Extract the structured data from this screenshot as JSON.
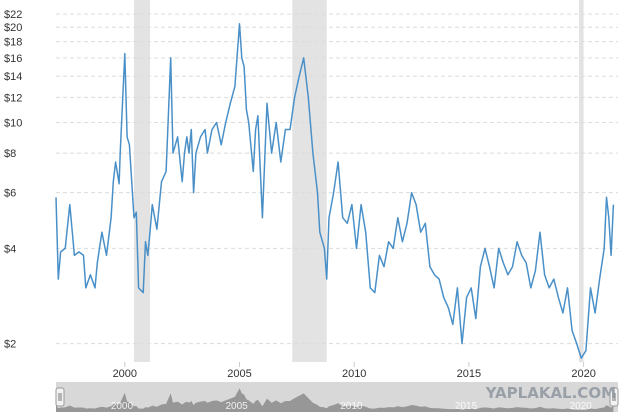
{
  "chart_data": {
    "type": "line",
    "title": "",
    "xlabel": "",
    "ylabel": "",
    "y_scale": "log",
    "ylim": [
      1.75,
      23
    ],
    "xlim": [
      1997.0,
      2021.5
    ],
    "grid": true,
    "y_ticks": [
      2,
      4,
      6,
      8,
      10,
      12,
      14,
      16,
      18,
      20,
      22
    ],
    "y_tick_labels": [
      "$2",
      "$4",
      "$6",
      "$8",
      "$10",
      "$12",
      "$14",
      "$16",
      "$18",
      "$20",
      "$22"
    ],
    "x_ticks": [
      2000,
      2005,
      2010,
      2015,
      2020
    ],
    "x_tick_labels": [
      "2000",
      "2005",
      "2010",
      "2015",
      "2020"
    ],
    "recession_bands": [
      [
        2000.4,
        2001.1
      ],
      [
        2007.3,
        2008.8
      ],
      [
        2019.8,
        2020.0
      ]
    ],
    "series": [
      {
        "color": "#4a90c8",
        "x": [
          1997.0,
          1997.1,
          1997.2,
          1997.4,
          1997.6,
          1997.8,
          1998.0,
          1998.2,
          1998.3,
          1998.5,
          1998.7,
          1998.8,
          1999.0,
          1999.2,
          1999.4,
          1999.5,
          1999.6,
          1999.75,
          1999.8,
          2000.0,
          2000.1,
          2000.2,
          2000.4,
          2000.5,
          2000.6,
          2000.8,
          2000.9,
          2001.0,
          2001.1,
          2001.2,
          2001.4,
          2001.6,
          2001.8,
          2002.0,
          2002.1,
          2002.3,
          2002.5,
          2002.6,
          2002.7,
          2002.8,
          2002.9,
          2003.0,
          2003.1,
          2003.3,
          2003.5,
          2003.6,
          2003.8,
          2004.0,
          2004.2,
          2004.4,
          2004.6,
          2004.8,
          2005.0,
          2005.1,
          2005.2,
          2005.3,
          2005.4,
          2005.6,
          2005.7,
          2005.8,
          2006.0,
          2006.2,
          2006.4,
          2006.6,
          2006.8,
          2007.0,
          2007.2,
          2007.4,
          2007.6,
          2007.8,
          2008.0,
          2008.2,
          2008.4,
          2008.5,
          2008.7,
          2008.8,
          2008.9,
          2009.1,
          2009.3,
          2009.5,
          2009.7,
          2009.9,
          2010.1,
          2010.3,
          2010.5,
          2010.7,
          2010.9,
          2011.1,
          2011.3,
          2011.5,
          2011.7,
          2011.9,
          2012.1,
          2012.3,
          2012.5,
          2012.7,
          2012.9,
          2013.1,
          2013.3,
          2013.5,
          2013.7,
          2013.9,
          2014.1,
          2014.3,
          2014.5,
          2014.7,
          2014.9,
          2015.1,
          2015.3,
          2015.5,
          2015.7,
          2015.9,
          2016.1,
          2016.3,
          2016.5,
          2016.7,
          2016.9,
          2017.1,
          2017.3,
          2017.5,
          2017.7,
          2017.9,
          2018.1,
          2018.3,
          2018.5,
          2018.7,
          2018.9,
          2019.1,
          2019.3,
          2019.5,
          2019.7,
          2019.9,
          2020.1,
          2020.3,
          2020.5,
          2020.7,
          2020.9,
          2021.0,
          2021.1,
          2021.2,
          2021.3
        ],
        "values": [
          5.8,
          3.2,
          3.9,
          4.0,
          5.5,
          3.8,
          3.9,
          3.8,
          3.0,
          3.3,
          3.0,
          3.6,
          4.5,
          3.8,
          5.0,
          6.5,
          7.5,
          6.4,
          8.0,
          16.5,
          9.0,
          8.5,
          5.0,
          5.2,
          3.0,
          2.9,
          4.2,
          3.8,
          4.5,
          5.5,
          4.6,
          6.5,
          7.0,
          16.0,
          8.0,
          9.0,
          6.5,
          8.0,
          9.0,
          8.0,
          9.5,
          6.0,
          8.0,
          9.0,
          9.5,
          8.0,
          9.5,
          10.0,
          8.5,
          10.0,
          11.5,
          13.0,
          20.5,
          16.0,
          15.0,
          11.0,
          10.0,
          7.0,
          9.5,
          10.5,
          5.0,
          11.5,
          8.0,
          10.0,
          7.5,
          9.5,
          9.5,
          12.0,
          14.0,
          16.0,
          12.0,
          8.0,
          6.0,
          4.5,
          4.0,
          3.2,
          5.0,
          6.0,
          7.5,
          5.0,
          4.8,
          5.5,
          4.0,
          5.5,
          4.5,
          3.0,
          2.9,
          3.8,
          3.5,
          4.2,
          4.0,
          5.0,
          4.2,
          4.8,
          6.0,
          5.5,
          4.5,
          4.8,
          3.5,
          3.3,
          3.2,
          2.8,
          2.6,
          2.3,
          3.0,
          2.0,
          2.8,
          3.0,
          2.4,
          3.5,
          4.0,
          3.5,
          3.0,
          4.0,
          3.6,
          3.3,
          3.5,
          4.2,
          3.8,
          3.6,
          3.0,
          3.4,
          4.5,
          3.3,
          3.0,
          3.2,
          2.8,
          2.5,
          3.0,
          2.2,
          2.0,
          1.8,
          1.9,
          3.0,
          2.5,
          3.2,
          4.0,
          5.8,
          5.0,
          3.8,
          5.5
        ]
      }
    ],
    "navigator": {
      "x_tick_labels": [
        "2000",
        "2005",
        "2010",
        "2015",
        "2020"
      ]
    }
  },
  "watermark": "YAPLAKAL.COM",
  "colors": {
    "line": "#4a90c8",
    "grid": "#dcdcdc",
    "recession": "#e3e3e3",
    "navigator_bg": "#d8d8d8",
    "navigator_area": "#8c8c8c"
  }
}
